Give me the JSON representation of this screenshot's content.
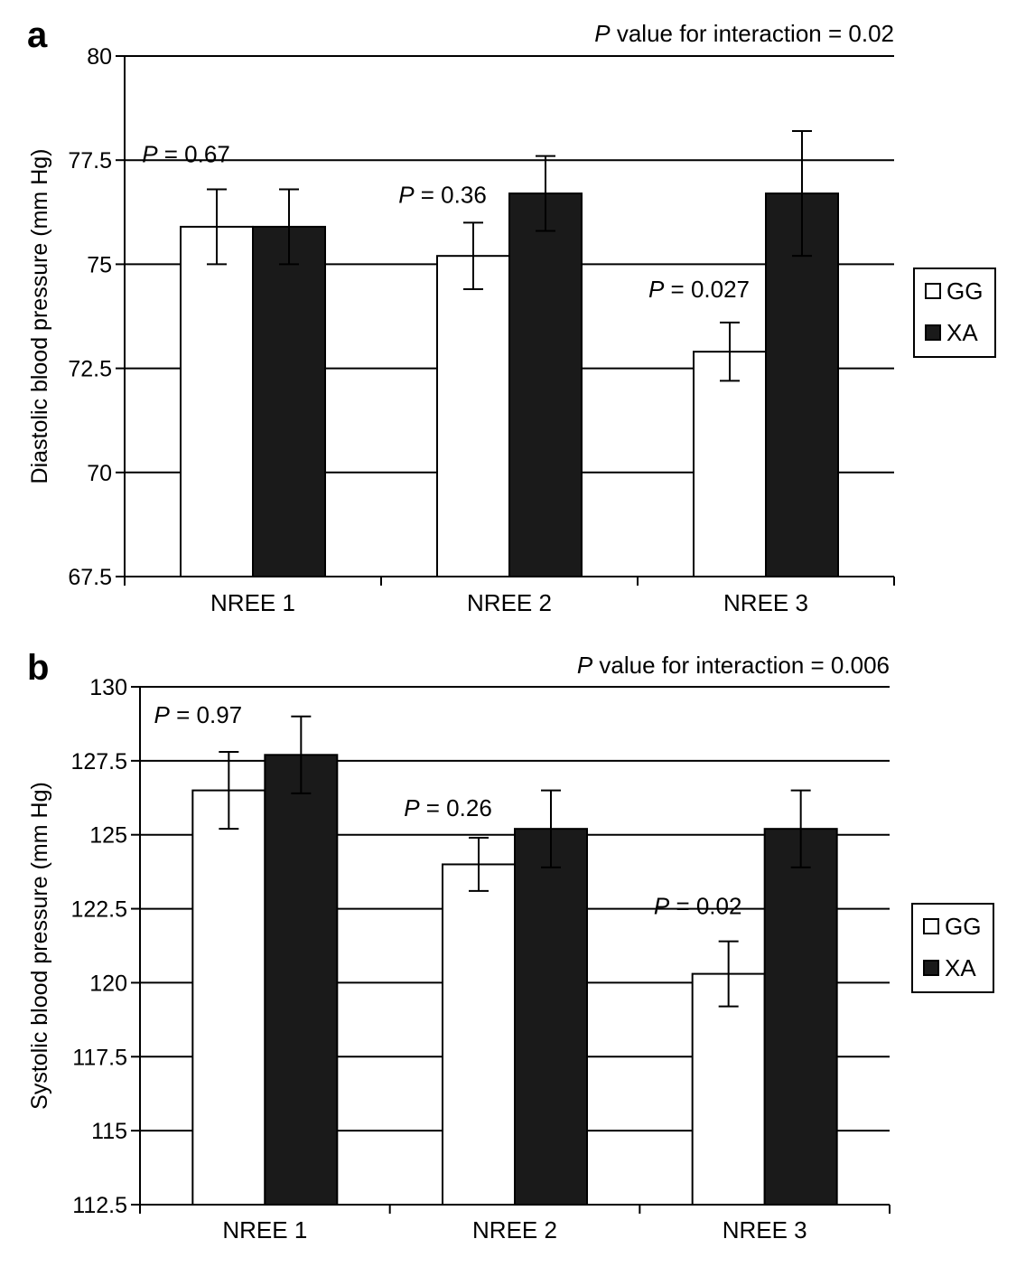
{
  "chart_data": [
    {
      "panel": "a",
      "type": "bar",
      "interaction_label": {
        "prefix": "P",
        "text": " value for interaction = 0.02"
      },
      "ylabel": "Diastolic blood pressure (mm Hg)",
      "xlabel": "",
      "ylim": [
        67.5,
        80
      ],
      "yticks": [
        "67.5",
        "70",
        "72.5",
        "75",
        "77.5",
        "80"
      ],
      "grid": true,
      "legend_position": "right",
      "categories": [
        "NREE 1",
        "NREE 2",
        "NREE 3"
      ],
      "series": [
        {
          "name": "GG",
          "color": "#ffffff",
          "values": [
            75.9,
            75.2,
            72.9
          ],
          "errors": [
            0.9,
            0.8,
            0.7
          ]
        },
        {
          "name": "XA",
          "color": "#1a1a1a",
          "values": [
            75.9,
            76.7,
            76.7
          ],
          "errors": [
            0.9,
            0.9,
            1.5
          ]
        }
      ],
      "p_values": [
        {
          "prefix": "P",
          "text": " = 0.67"
        },
        {
          "prefix": "P",
          "text": " = 0.36"
        },
        {
          "prefix": "P",
          "text": " = 0.027"
        }
      ]
    },
    {
      "panel": "b",
      "type": "bar",
      "interaction_label": {
        "prefix": "P",
        "text": " value for interaction = 0.006"
      },
      "ylabel": "Systolic blood pressure (mm Hg)",
      "xlabel": "",
      "ylim": [
        112.5,
        130
      ],
      "yticks": [
        "112.5",
        "115",
        "117.5",
        "120",
        "122.5",
        "125",
        "127.5",
        "130"
      ],
      "grid": true,
      "legend_position": "right",
      "categories": [
        "NREE 1",
        "NREE 2",
        "NREE 3"
      ],
      "series": [
        {
          "name": "GG",
          "color": "#ffffff",
          "values": [
            126.5,
            124.0,
            120.3
          ],
          "errors": [
            1.3,
            0.9,
            1.1
          ]
        },
        {
          "name": "XA",
          "color": "#1a1a1a",
          "values": [
            127.7,
            125.2,
            125.2
          ],
          "errors": [
            1.3,
            1.3,
            1.3
          ]
        }
      ],
      "p_values": [
        {
          "prefix": "P",
          "text": " = 0.97"
        },
        {
          "prefix": "P",
          "text": " = 0.26"
        },
        {
          "prefix": "P",
          "text": " = 0.02"
        }
      ]
    }
  ]
}
